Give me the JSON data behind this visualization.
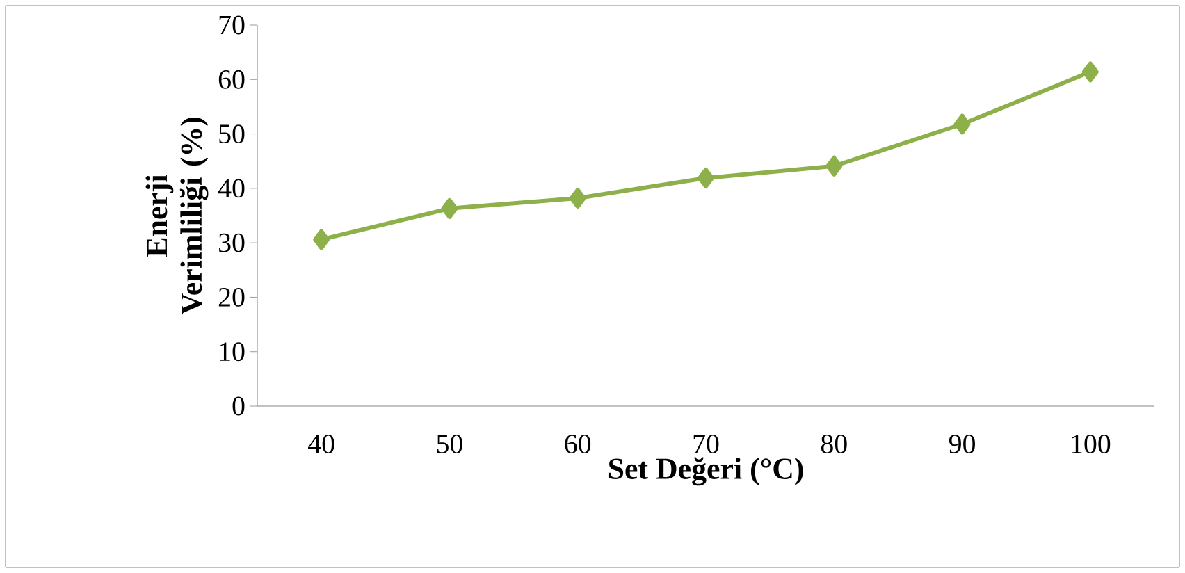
{
  "chart_data": {
    "type": "line",
    "xlabel": "Set Değeri (°C)",
    "ylabel": "Enerji Verimliliği (%)",
    "categories": [
      "40",
      "50",
      "60",
      "70",
      "80",
      "90",
      "100"
    ],
    "series": [
      {
        "color": "#8db04a",
        "values": [
          30.6,
          36.3,
          38.2,
          41.9,
          44.1,
          51.8,
          61.4
        ]
      }
    ],
    "ylim": [
      0,
      70
    ],
    "yticks": [
      0,
      10,
      20,
      30,
      40,
      50,
      60,
      70
    ],
    "marker": "diamond",
    "line_style": "solid"
  }
}
